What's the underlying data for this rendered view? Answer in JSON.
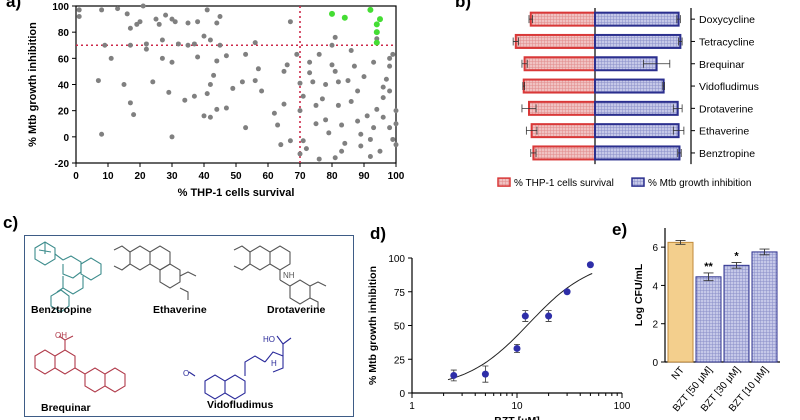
{
  "panels": {
    "a": {
      "letter": "a)"
    },
    "b": {
      "letter": "b)"
    },
    "c": {
      "letter": "c)"
    },
    "d": {
      "letter": "d)"
    },
    "e": {
      "letter": "e)"
    }
  },
  "chart_data": [
    {
      "id": "a",
      "type": "scatter",
      "xlabel": "% THP-1 cells survival",
      "ylabel": "% Mtb growth inhibition",
      "xlim": [
        0,
        100
      ],
      "ylim": [
        -20,
        100
      ],
      "xticks": [
        "0",
        "10",
        "20",
        "30",
        "40",
        "50",
        "60",
        "70",
        "80",
        "90",
        "100"
      ],
      "yticks": [
        "-20",
        "0",
        "20",
        "40",
        "60",
        "80",
        "100"
      ],
      "thresholds": {
        "x": 70,
        "y": 70
      },
      "highlight_color": "#44dd33",
      "point_color": "#808080",
      "points": [
        [
          1,
          97
        ],
        [
          1,
          92
        ],
        [
          8,
          97
        ],
        [
          9,
          70
        ],
        [
          11,
          60
        ],
        [
          7,
          43
        ],
        [
          8,
          2
        ],
        [
          13,
          98
        ],
        [
          16,
          94
        ],
        [
          17,
          70
        ],
        [
          15,
          40
        ],
        [
          17,
          26
        ],
        [
          18,
          17
        ],
        [
          17,
          83
        ],
        [
          19,
          86
        ],
        [
          20,
          88
        ],
        [
          22,
          67
        ],
        [
          22,
          71
        ],
        [
          24,
          42
        ],
        [
          21,
          100
        ],
        [
          26,
          86
        ],
        [
          25,
          90
        ],
        [
          27,
          74
        ],
        [
          27,
          60
        ],
        [
          28,
          93
        ],
        [
          30,
          57
        ],
        [
          30,
          90
        ],
        [
          31,
          88
        ],
        [
          32,
          71
        ],
        [
          29,
          34
        ],
        [
          30,
          0
        ],
        [
          34,
          28
        ],
        [
          35,
          70
        ],
        [
          35,
          87
        ],
        [
          37,
          71
        ],
        [
          37,
          31
        ],
        [
          38,
          88
        ],
        [
          38,
          61
        ],
        [
          40,
          77
        ],
        [
          40,
          16
        ],
        [
          42,
          15
        ],
        [
          41,
          97
        ],
        [
          43,
          47
        ],
        [
          42,
          40
        ],
        [
          44,
          58
        ],
        [
          42,
          74
        ],
        [
          45,
          92
        ],
        [
          44,
          87
        ],
        [
          45,
          70
        ],
        [
          44,
          21
        ],
        [
          47,
          22
        ],
        [
          41,
          33
        ],
        [
          47,
          62
        ],
        [
          49,
          37
        ],
        [
          53,
          63
        ],
        [
          52,
          42
        ],
        [
          53,
          7
        ],
        [
          56,
          72
        ],
        [
          56,
          43
        ],
        [
          57,
          52
        ],
        [
          58,
          35
        ],
        [
          62,
          18
        ],
        [
          63,
          9
        ],
        [
          64,
          -6
        ],
        [
          65,
          50
        ],
        [
          65,
          25
        ],
        [
          67,
          88
        ],
        [
          66,
          55
        ],
        [
          67,
          -3
        ],
        [
          69,
          63
        ],
        [
          70,
          41
        ],
        [
          70,
          20
        ],
        [
          70,
          -13
        ],
        [
          71,
          31
        ],
        [
          71,
          -3
        ],
        [
          72,
          -9
        ],
        [
          73,
          57
        ],
        [
          73,
          49
        ],
        [
          74,
          42
        ],
        [
          75,
          24
        ],
        [
          76,
          -17
        ],
        [
          76,
          63
        ],
        [
          75,
          10
        ],
        [
          78,
          13
        ],
        [
          77,
          29
        ],
        [
          78,
          40
        ],
        [
          79,
          3
        ],
        [
          80,
          55
        ],
        [
          81,
          50
        ],
        [
          80,
          70
        ],
        [
          81,
          -16
        ],
        [
          81,
          76
        ],
        [
          82,
          42
        ],
        [
          82,
          24
        ],
        [
          83,
          9
        ],
        [
          83,
          -11
        ],
        [
          84,
          -5
        ],
        [
          85,
          43
        ],
        [
          86,
          27
        ],
        [
          86,
          66
        ],
        [
          87,
          54
        ],
        [
          88,
          35
        ],
        [
          88,
          12
        ],
        [
          89,
          2
        ],
        [
          89,
          -7
        ],
        [
          90,
          46
        ],
        [
          91,
          16
        ],
        [
          92,
          -15
        ],
        [
          92,
          -2
        ],
        [
          93,
          7
        ],
        [
          93,
          57
        ],
        [
          94,
          75
        ],
        [
          94,
          21
        ],
        [
          95,
          -11
        ],
        [
          96,
          15
        ],
        [
          96,
          30
        ],
        [
          96,
          38
        ],
        [
          97,
          44
        ],
        [
          98,
          7
        ],
        [
          98,
          35
        ],
        [
          98,
          60
        ],
        [
          98,
          54
        ],
        [
          99,
          63
        ],
        [
          99,
          -2
        ],
        [
          100,
          -6
        ],
        [
          100,
          20
        ],
        [
          100,
          10
        ]
      ],
      "highlighted": [
        [
          80,
          94
        ],
        [
          84,
          91
        ],
        [
          92,
          97
        ],
        [
          94,
          86
        ],
        [
          94,
          80
        ],
        [
          94,
          72
        ],
        [
          95,
          90
        ]
      ]
    },
    {
      "id": "b",
      "type": "bar",
      "orientation": "horizontal-diverging",
      "categories": [
        "Doxycycline",
        "Tetracycline",
        "Brequinar",
        "Vidofludimus",
        "Drotaverine",
        "Ethaverine",
        "Benztropine"
      ],
      "series": [
        {
          "name": "% THP-1 cells survival",
          "values": [
            73,
            90,
            80,
            81,
            75,
            72,
            70
          ],
          "errors": [
            2,
            3,
            3,
            1,
            8,
            6,
            3
          ],
          "color": "#d93838",
          "fill": "#f0c2c2"
        },
        {
          "name": "% Mtb growth inhibition",
          "values": [
            95,
            97,
            70,
            78,
            94,
            95,
            96
          ],
          "errors": [
            2,
            2,
            15,
            1,
            5,
            6,
            2
          ],
          "color": "#2b2f8e",
          "fill": "#c5c8e8"
        }
      ]
    },
    {
      "id": "d",
      "type": "scatter",
      "xscale": "log",
      "xlabel": "BZT [μM]",
      "ylabel": "% Mtb growth inhibition",
      "xlim": [
        1,
        100
      ],
      "ylim": [
        0,
        100
      ],
      "xticks": [
        "1",
        "10",
        "100"
      ],
      "yticks": [
        "0",
        "25",
        "50",
        "75",
        "100"
      ],
      "points": [
        {
          "x": 2.5,
          "y": 13,
          "err": 4
        },
        {
          "x": 5,
          "y": 14,
          "err": 6
        },
        {
          "x": 10,
          "y": 33,
          "err": 3
        },
        {
          "x": 12,
          "y": 57,
          "err": 4
        },
        {
          "x": 20,
          "y": 57,
          "err": 4
        },
        {
          "x": 30,
          "y": 75,
          "err": 1
        },
        {
          "x": 50,
          "y": 95,
          "err": 1
        }
      ],
      "fit": {
        "bottom": 3,
        "top": 100,
        "ec50": 13,
        "hill": 1.45
      },
      "color": "#2e2ea8"
    },
    {
      "id": "e",
      "type": "bar",
      "ylabel": "Log CFU/mL",
      "ylim": [
        0,
        7
      ],
      "yticks": [
        "0",
        "2",
        "4",
        "6"
      ],
      "categories": [
        "NT",
        "BZT [50 μM]",
        "BZT [30 μM]",
        "BZT [10 μM]"
      ],
      "values": [
        6.25,
        4.45,
        5.05,
        5.75
      ],
      "errors": [
        0.1,
        0.2,
        0.15,
        0.15
      ],
      "significance": [
        "",
        "**",
        "*",
        ""
      ],
      "colors": [
        "#f3cf8d",
        "#c5c8e8",
        "#c5c8e8",
        "#c5c8e8"
      ],
      "edge_colors": [
        "#c08a3a",
        "#2b2f8e",
        "#2b2f8e",
        "#2b2f8e"
      ]
    }
  ],
  "structures": [
    {
      "name": "Benztropine",
      "color": "#3c8c8c"
    },
    {
      "name": "Ethaverine",
      "color": "#555555"
    },
    {
      "name": "Drotaverine",
      "color": "#555555"
    },
    {
      "name": "Brequinar",
      "color": "#b03a4a"
    },
    {
      "name": "Vidofludimus",
      "color": "#2a2a9a"
    }
  ],
  "structure_text": {
    "hydroxyl": "OH",
    "oxygen": "O",
    "carboxyl": "HO",
    "amine": "NH",
    "amide": "H"
  }
}
